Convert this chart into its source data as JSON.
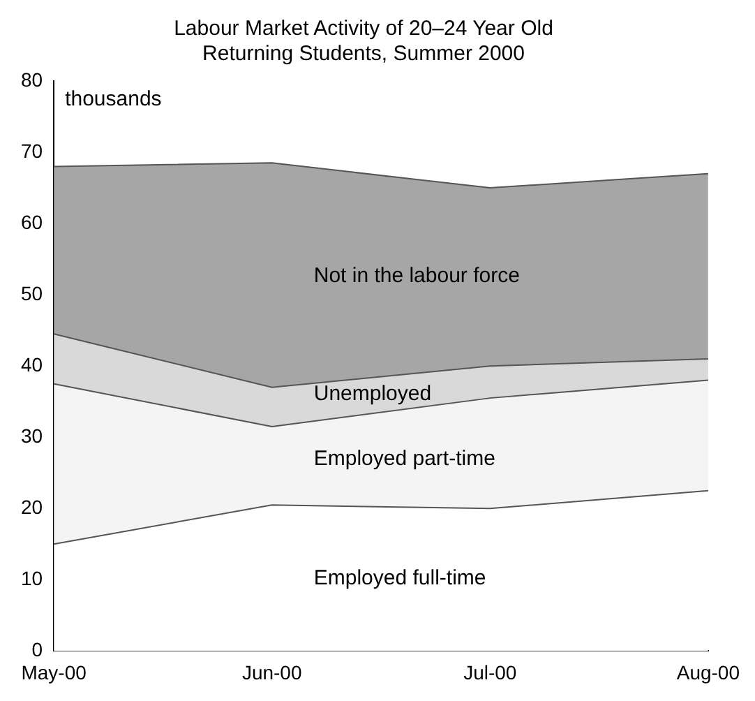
{
  "chart_data": {
    "type": "area",
    "title": "Labour Market Activity of 20–24 Year Old\nReturning Students, Summer 2000",
    "ylabel": "thousands",
    "categories": [
      "May-00",
      "Jun-00",
      "Jul-00",
      "Aug-00"
    ],
    "stacked": true,
    "series": [
      {
        "name": "Employed full-time",
        "color": "#ffffff",
        "values": [
          15,
          20.5,
          20,
          22.5
        ]
      },
      {
        "name": "Employed part-time",
        "color": "#f4f4f4",
        "values": [
          22.5,
          11,
          15.5,
          15.5
        ]
      },
      {
        "name": "Unemployed",
        "color": "#d9d9d9",
        "values": [
          7,
          5.5,
          4.5,
          3
        ]
      },
      {
        "name": "Not in the labour force",
        "color": "#a6a6a6",
        "values": [
          23.5,
          31.5,
          25,
          26
        ]
      }
    ],
    "ylim": [
      0,
      80
    ],
    "yticks": [
      0,
      10,
      20,
      30,
      40,
      50,
      60,
      70,
      80
    ],
    "grid": false,
    "legend": false
  }
}
